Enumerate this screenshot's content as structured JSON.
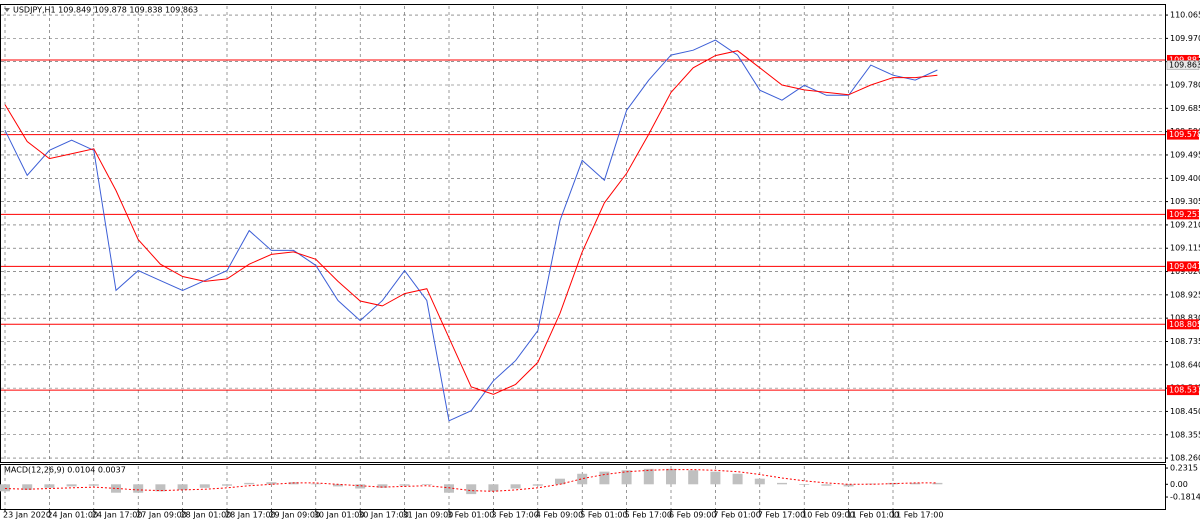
{
  "chart_data": [
    {
      "type": "line",
      "title": "USDJPY,H1 109.849 109.878 109.838 109.863",
      "categories": [
        "23 Jan 2020",
        null,
        "24 Jan 01:00",
        null,
        "24 Jan 17:00",
        null,
        "27 Jan 09:00",
        null,
        "28 Jan 01:00",
        null,
        "28 Jan 17:00",
        null,
        "29 Jan 09:00",
        null,
        "30 Jan 01:00",
        null,
        "30 Jan 17:00",
        null,
        "31 Jan 09:00",
        null,
        "3 Feb 01:00",
        null,
        "3 Feb 17:00",
        null,
        "4 Feb 09:00",
        null,
        "5 Feb 01:00",
        null,
        "5 Feb 17:00",
        null,
        "6 Feb 09:00",
        null,
        "7 Feb 01:00",
        null,
        "7 Feb 17:00",
        null,
        "10 Feb 09:00",
        null,
        "11 Feb 01:00",
        null,
        "11 Feb 17:00",
        null,
        null
      ],
      "series": [
        {
          "color": "#3c5ed6",
          "values": [
            109.596,
            109.412,
            109.514,
            109.555,
            109.514,
            108.943,
            109.024,
            108.983,
            108.943,
            108.983,
            109.024,
            109.187,
            109.106,
            109.106,
            109.045,
            108.902,
            108.82,
            108.902,
            109.024,
            108.902,
            108.412,
            108.453,
            108.575,
            108.657,
            108.779,
            109.228,
            109.473,
            109.392,
            109.677,
            109.8,
            109.902,
            109.922,
            109.963,
            109.902,
            109.759,
            109.718,
            109.779,
            109.738,
            109.738,
            109.861,
            109.82,
            109.8,
            109.841
          ]
        },
        {
          "color": "#ff0000",
          "values": [
            109.7,
            109.55,
            109.48,
            109.5,
            109.52,
            109.35,
            109.15,
            109.05,
            109.0,
            108.98,
            108.99,
            109.05,
            109.09,
            109.1,
            109.07,
            108.98,
            108.9,
            108.88,
            108.93,
            108.95,
            108.75,
            108.55,
            108.52,
            108.56,
            108.65,
            108.85,
            109.1,
            109.3,
            109.42,
            109.58,
            109.75,
            109.85,
            109.9,
            109.92,
            109.85,
            109.78,
            109.76,
            109.75,
            109.74,
            109.78,
            109.81,
            109.81,
            109.82
          ]
        }
      ],
      "ylim": [
        108.244,
        110.106
      ],
      "yticks": [
        110.065,
        {
          "value": 109.97,
          "label": "109.970"
        },
        109.875,
        {
          "value": 109.78,
          "label": "109.780"
        },
        109.685,
        {
          "value": 109.59,
          "label": "109.590"
        },
        109.495,
        {
          "value": 109.4,
          "label": "109.400"
        },
        109.305,
        {
          "value": 109.21,
          "label": "109.210"
        },
        109.115,
        {
          "value": 109.02,
          "label": "109.020"
        },
        108.925,
        {
          "value": 108.83,
          "label": "108.830"
        },
        108.735,
        {
          "value": 108.64,
          "label": "108.640"
        },
        108.545,
        {
          "value": 108.45,
          "label": "108.450"
        },
        108.355,
        {
          "value": 108.26,
          "label": "108.260"
        }
      ],
      "levels": [
        109.882,
        109.578,
        109.253,
        109.041,
        108.805,
        108.537
      ],
      "level_color": "#ff0000",
      "last_price": 109.863,
      "grid": true
    },
    {
      "type": "macd",
      "title": "MACD(12,26,9) 0.0104 0.0037",
      "series": [
        {
          "color": "#c0c0c0",
          "style": "histogram",
          "values": [
            -0.1,
            -0.08,
            -0.05,
            -0.03,
            -0.02,
            -0.12,
            -0.12,
            -0.1,
            -0.08,
            -0.05,
            -0.02,
            0.02,
            0.03,
            0.03,
            0.01,
            -0.03,
            -0.06,
            -0.05,
            -0.02,
            -0.01,
            -0.12,
            -0.14,
            -0.1,
            -0.06,
            -0.02,
            0.08,
            0.15,
            0.18,
            0.2,
            0.22,
            0.22,
            0.2,
            0.18,
            0.15,
            0.08,
            0.02,
            -0.01,
            -0.02,
            -0.03,
            0.01,
            0.02,
            0.02,
            0.02
          ]
        },
        {
          "color": "#ff0000",
          "style": "dotted",
          "values": [
            -0.06,
            -0.07,
            -0.06,
            -0.05,
            -0.04,
            -0.06,
            -0.08,
            -0.09,
            -0.08,
            -0.07,
            -0.05,
            -0.02,
            0.0,
            0.02,
            0.02,
            0.0,
            -0.02,
            -0.04,
            -0.03,
            -0.02,
            -0.05,
            -0.09,
            -0.1,
            -0.08,
            -0.05,
            0.0,
            0.08,
            0.14,
            0.18,
            0.2,
            0.21,
            0.21,
            0.2,
            0.18,
            0.14,
            0.09,
            0.05,
            0.02,
            0.0,
            0.0,
            0.01,
            0.02,
            0.02
          ]
        }
      ],
      "ylim": [
        -0.352,
        0.275
      ],
      "yticks": [
        0.2315,
        {
          "value": 0,
          "label": "0.00"
        },
        -0.1814
      ]
    }
  ]
}
